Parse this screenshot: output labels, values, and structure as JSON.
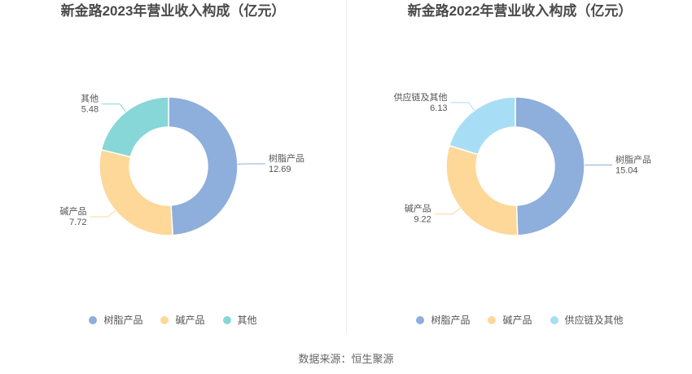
{
  "chart_data": [
    {
      "type": "pie",
      "title": "新金路2023年营业收入构成（亿元）",
      "series": [
        {
          "name": "树脂产品",
          "value": 12.69,
          "value_label": "12.69",
          "color": "#8eaedb"
        },
        {
          "name": "碱产品",
          "value": 7.72,
          "value_label": "7.72",
          "color": "#fdd899"
        },
        {
          "name": "其他",
          "value": 5.48,
          "value_label": "5.48",
          "color": "#87d6d8"
        }
      ],
      "legend": "bottom"
    },
    {
      "type": "pie",
      "title": "新金路2022年营业收入构成（亿元）",
      "series": [
        {
          "name": "树脂产品",
          "value": 15.04,
          "value_label": "15.04",
          "color": "#8eaedb"
        },
        {
          "name": "碱产品",
          "value": 9.22,
          "value_label": "9.22",
          "color": "#fdd899"
        },
        {
          "name": "供应链及其他",
          "value": 6.13,
          "value_label": "6.13",
          "color": "#a8def5"
        }
      ],
      "legend": "bottom"
    }
  ],
  "source": "数据来源：恒生聚源"
}
